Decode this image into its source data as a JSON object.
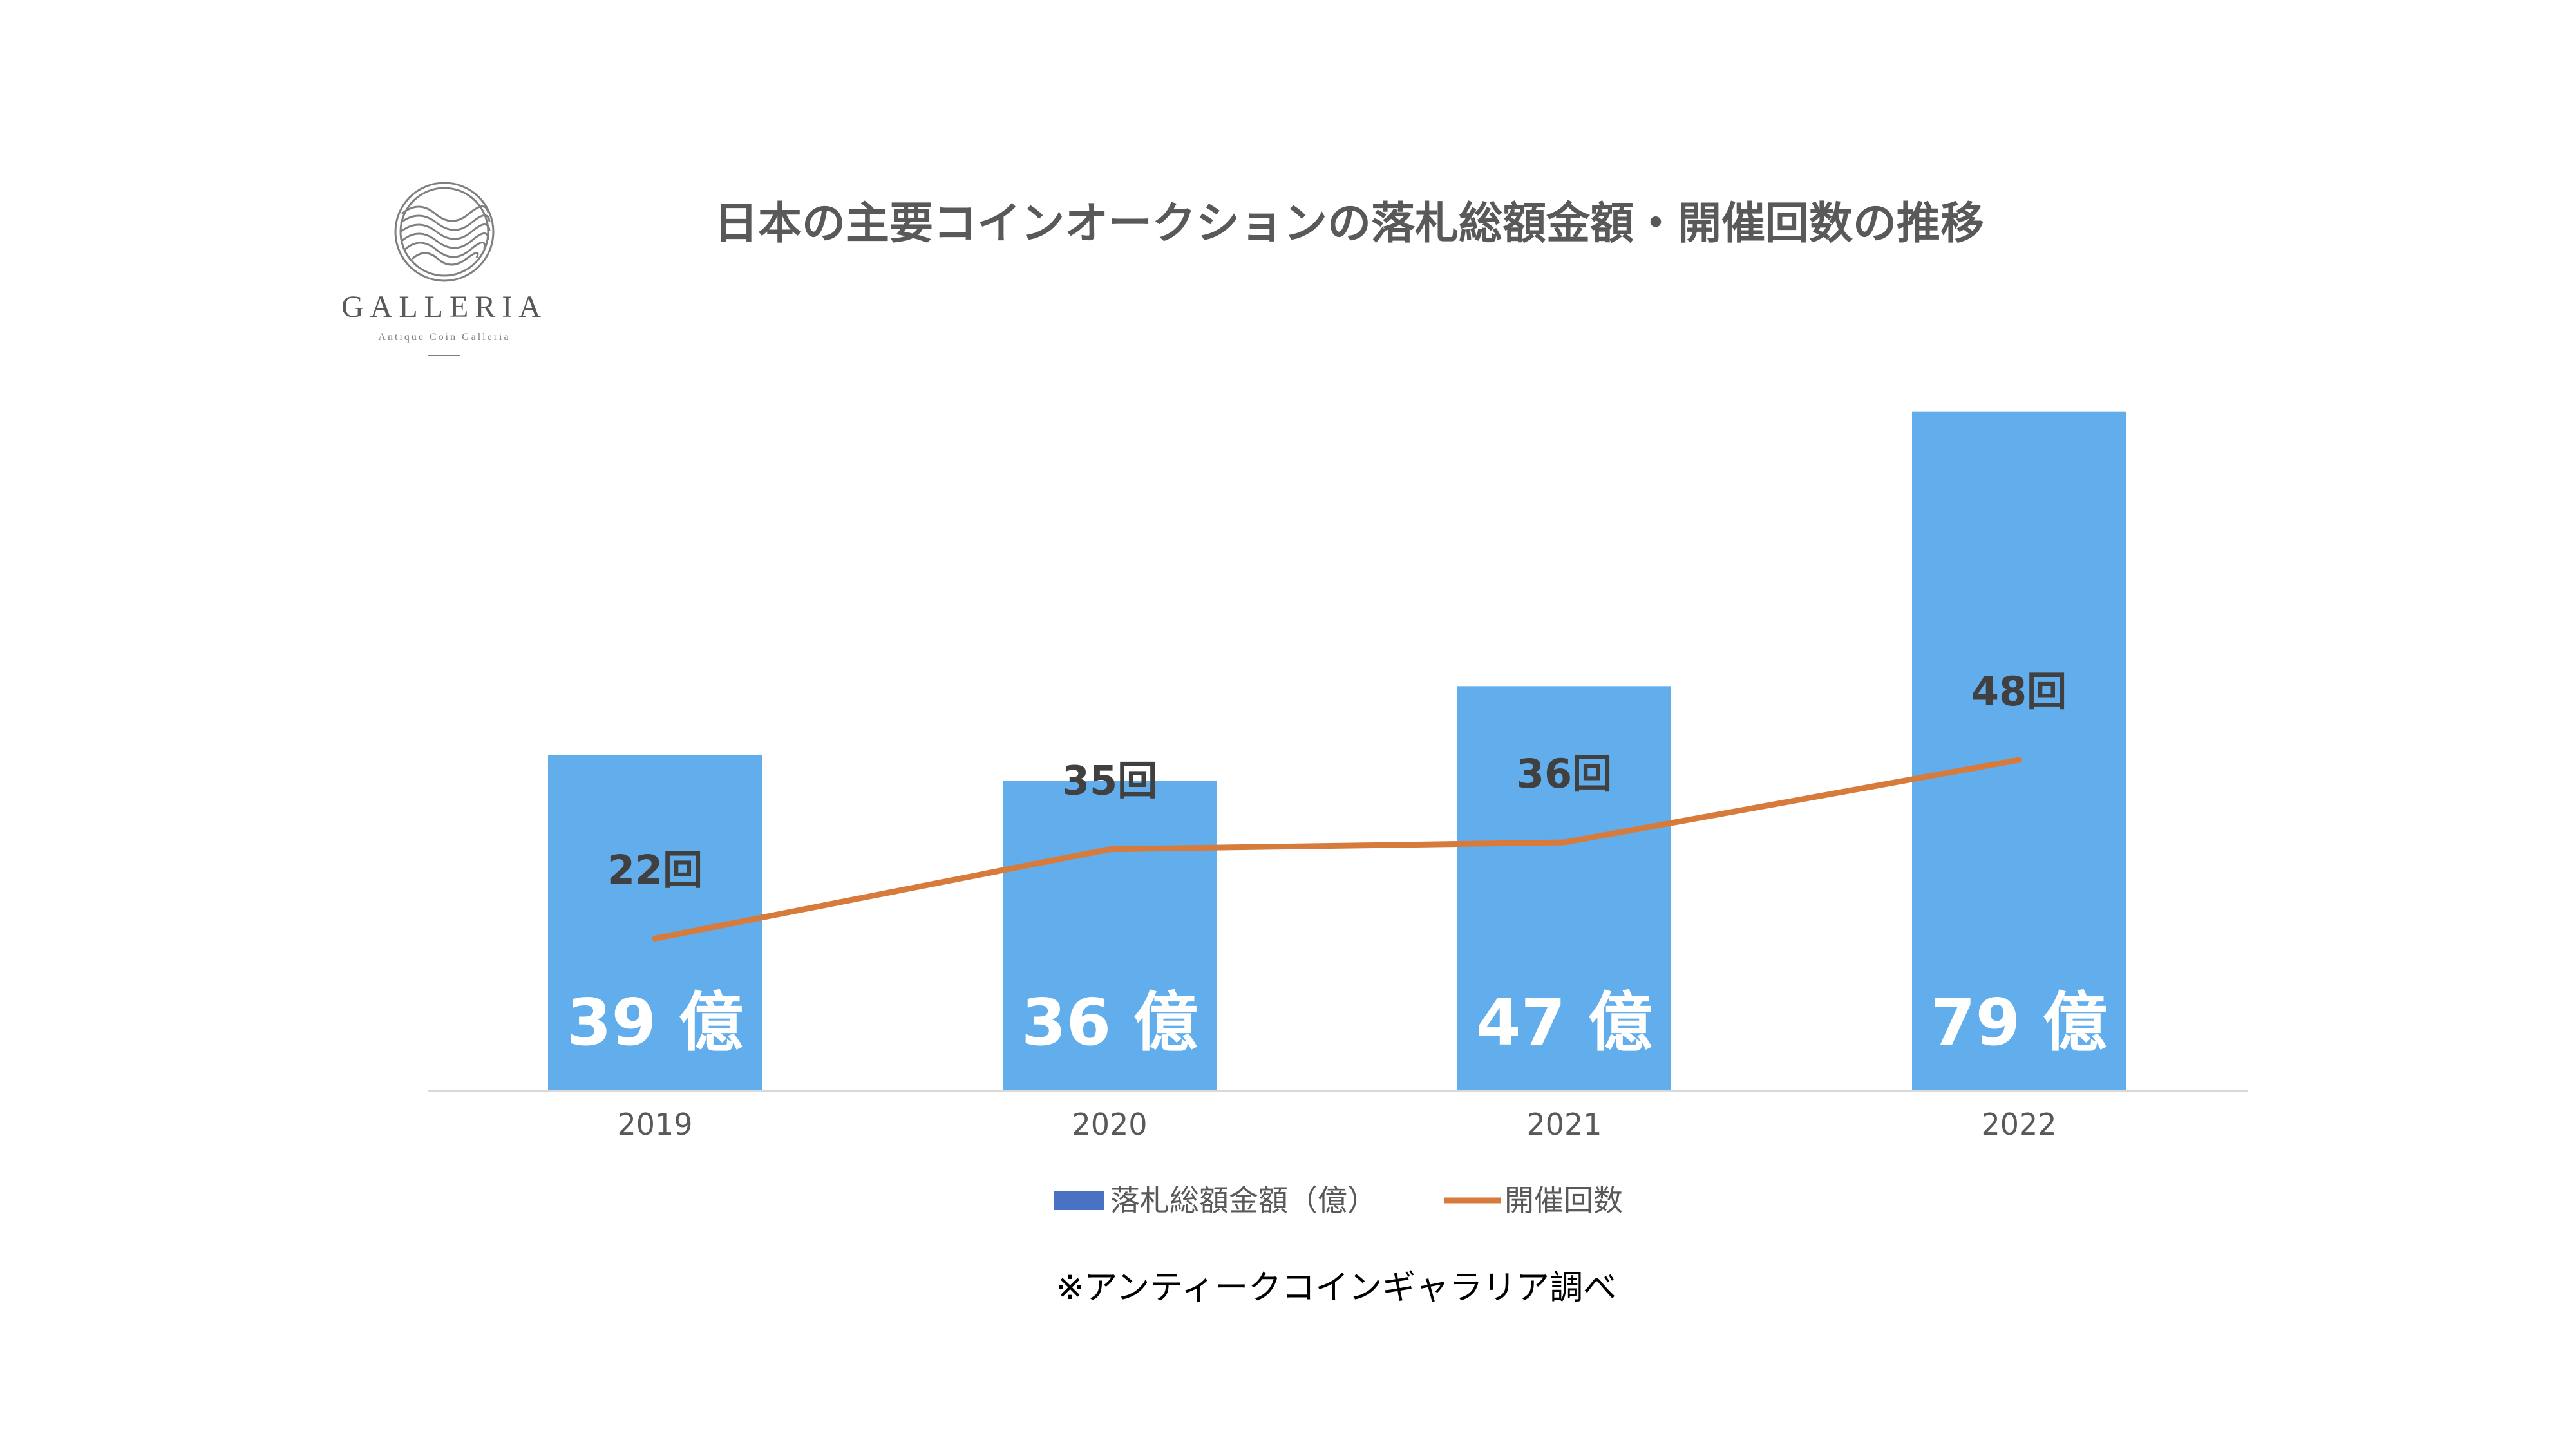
{
  "colors": {
    "bar": "#62ADEC",
    "legend_bar": "#4A72C2",
    "line": "#D77B3C",
    "axis": "#D9D9D9",
    "title": "#595959",
    "logo": "#7f7f7f"
  },
  "logo": {
    "name": "GALLERIA",
    "tagline": "Antique Coin Galleria"
  },
  "chart_data": {
    "type": "bar",
    "title": "日本の主要コインオークションの落札総額金額・開催回数の推移",
    "categories": [
      "2019",
      "2020",
      "2021",
      "2022"
    ],
    "ylim": [
      0,
      84
    ],
    "y2lim": [
      0,
      105
    ],
    "series": [
      {
        "name": "落札総額金額（億）",
        "type": "bar",
        "values": [
          39,
          36,
          47,
          79
        ],
        "labels": [
          "39 億",
          "36 億",
          "47 億",
          "79 億"
        ]
      },
      {
        "name": "開催回数",
        "type": "line",
        "axis": "secondary",
        "values": [
          22,
          35,
          36,
          48
        ],
        "labels": [
          "22回",
          "35回",
          "36回",
          "48回"
        ]
      }
    ],
    "legend_position": "bottom",
    "grid": false
  },
  "note": "※アンティークコインギャラリア調べ"
}
